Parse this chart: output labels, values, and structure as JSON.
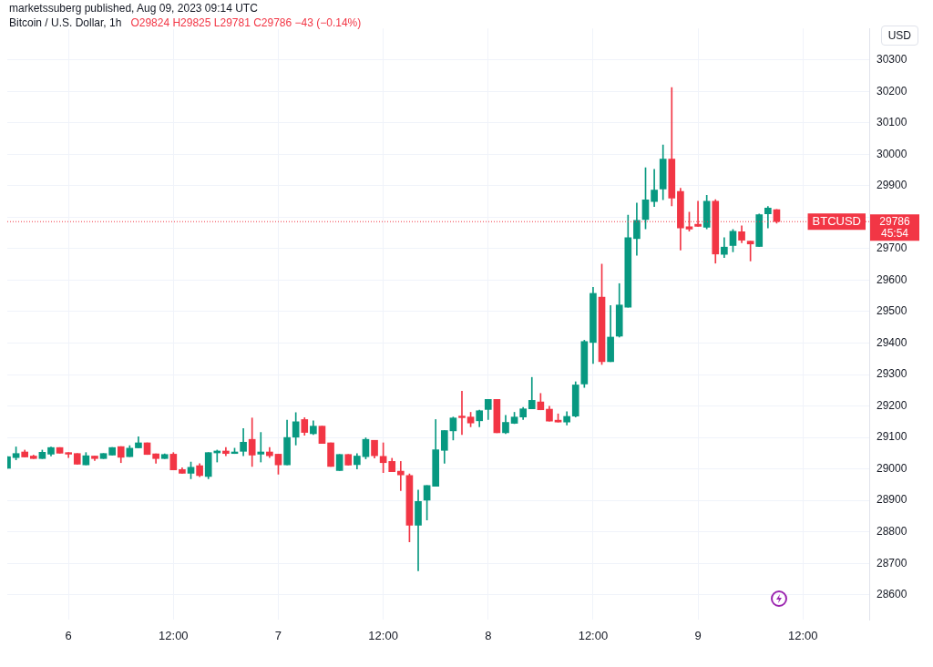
{
  "chart_data": {
    "type": "candlestick",
    "title": "Bitcoin / U.S. Dollar, 1h",
    "subtitle": "marketssuberg published, Aug 09, 2023 09:14 UTC",
    "annotations": [
      "O29824 H29825 L29781 C29786 −43 (−0.14%)",
      "USD",
      "45:54",
      "29786"
    ],
    "x": [
      "2023-08-05T17:00",
      "2023-08-05T18:00",
      "2023-08-05T19:00",
      "2023-08-05T20:00",
      "2023-08-05T21:00",
      "2023-08-05T22:00",
      "2023-08-05T23:00",
      "2023-08-06T00:00",
      "2023-08-06T01:00",
      "2023-08-06T02:00",
      "2023-08-06T03:00",
      "2023-08-06T04:00",
      "2023-08-06T05:00",
      "2023-08-06T06:00",
      "2023-08-06T07:00",
      "2023-08-06T08:00",
      "2023-08-06T09:00",
      "2023-08-06T10:00",
      "2023-08-06T11:00",
      "2023-08-06T12:00",
      "2023-08-06T13:00",
      "2023-08-06T14:00",
      "2023-08-06T15:00",
      "2023-08-06T16:00",
      "2023-08-06T17:00",
      "2023-08-06T18:00",
      "2023-08-06T19:00",
      "2023-08-06T20:00",
      "2023-08-06T21:00",
      "2023-08-06T22:00",
      "2023-08-06T23:00",
      "2023-08-07T00:00",
      "2023-08-07T01:00",
      "2023-08-07T02:00",
      "2023-08-07T03:00",
      "2023-08-07T04:00",
      "2023-08-07T05:00",
      "2023-08-07T06:00",
      "2023-08-07T07:00",
      "2023-08-07T08:00",
      "2023-08-07T09:00",
      "2023-08-07T10:00",
      "2023-08-07T11:00",
      "2023-08-07T12:00",
      "2023-08-07T13:00",
      "2023-08-07T14:00",
      "2023-08-07T15:00",
      "2023-08-07T16:00",
      "2023-08-07T17:00",
      "2023-08-07T18:00",
      "2023-08-07T19:00",
      "2023-08-07T20:00",
      "2023-08-07T21:00",
      "2023-08-07T22:00",
      "2023-08-07T23:00",
      "2023-08-08T00:00",
      "2023-08-08T01:00",
      "2023-08-08T02:00",
      "2023-08-08T03:00",
      "2023-08-08T04:00",
      "2023-08-08T05:00",
      "2023-08-08T06:00",
      "2023-08-08T07:00",
      "2023-08-08T08:00",
      "2023-08-08T09:00",
      "2023-08-08T10:00",
      "2023-08-08T11:00",
      "2023-08-08T12:00",
      "2023-08-08T13:00",
      "2023-08-08T14:00",
      "2023-08-08T15:00",
      "2023-08-08T16:00",
      "2023-08-08T17:00",
      "2023-08-08T18:00",
      "2023-08-08T19:00",
      "2023-08-08T20:00",
      "2023-08-08T21:00",
      "2023-08-08T22:00",
      "2023-08-08T23:00",
      "2023-08-09T00:00",
      "2023-08-09T01:00",
      "2023-08-09T02:00",
      "2023-08-09T03:00",
      "2023-08-09T04:00",
      "2023-08-09T05:00",
      "2023-08-09T06:00",
      "2023-08-09T07:00",
      "2023-08-09T08:00",
      "2023-08-09T09:00"
    ],
    "ohlc": [
      [
        29002,
        29039,
        29002,
        29039
      ],
      [
        29036,
        29070,
        29029,
        29049
      ],
      [
        29054,
        29060,
        29038,
        29038
      ],
      [
        29041,
        29044,
        29033,
        29033
      ],
      [
        29033,
        29060,
        29033,
        29053
      ],
      [
        29047,
        29070,
        29041,
        29068
      ],
      [
        29068,
        29068,
        29050,
        29050
      ],
      [
        29052,
        29052,
        29036,
        29047
      ],
      [
        29049,
        29049,
        29015,
        29015
      ],
      [
        29013,
        29052,
        29013,
        29042
      ],
      [
        29041,
        29041,
        29027,
        29033
      ],
      [
        29033,
        29049,
        29033,
        29049
      ],
      [
        29044,
        29068,
        29044,
        29068
      ],
      [
        29071,
        29071,
        29020,
        29037
      ],
      [
        29039,
        29074,
        29039,
        29066
      ],
      [
        29067,
        29102,
        29067,
        29083
      ],
      [
        29083,
        29083,
        29046,
        29046
      ],
      [
        29048,
        29048,
        29018,
        29033
      ],
      [
        29033,
        29048,
        29033,
        29046
      ],
      [
        29047,
        29052,
        28997,
        28997
      ],
      [
        28998,
        29004,
        28986,
        28986
      ],
      [
        28986,
        29022,
        28969,
        29005
      ],
      [
        29010,
        29017,
        28975,
        28979
      ],
      [
        28976,
        29052,
        28969,
        29052
      ],
      [
        29051,
        29060,
        29022,
        29057
      ],
      [
        29057,
        29068,
        29042,
        29049
      ],
      [
        29049,
        29066,
        29049,
        29054
      ],
      [
        29056,
        29128,
        29042,
        29085
      ],
      [
        29094,
        29162,
        29008,
        29044
      ],
      [
        29047,
        29116,
        29022,
        29054
      ],
      [
        29054,
        29068,
        29036,
        29042
      ],
      [
        29047,
        29047,
        28983,
        29013
      ],
      [
        29013,
        29155,
        29013,
        29100
      ],
      [
        29101,
        29179,
        29076,
        29150
      ],
      [
        29157,
        29163,
        29107,
        29116
      ],
      [
        29112,
        29153,
        29109,
        29136
      ],
      [
        29136,
        29136,
        29081,
        29081
      ],
      [
        29083,
        29083,
        29008,
        29008
      ],
      [
        28995,
        29046,
        28995,
        29046
      ],
      [
        29046,
        29046,
        29012,
        29012
      ],
      [
        29014,
        29049,
        29000,
        29041
      ],
      [
        29039,
        29099,
        29032,
        29094
      ],
      [
        29091,
        29091,
        29035,
        29042
      ],
      [
        29040,
        29083,
        28988,
        29020
      ],
      [
        29024,
        29034,
        28991,
        28991
      ],
      [
        28993,
        29024,
        28931,
        28981
      ],
      [
        28979,
        28984,
        28768,
        28821
      ],
      [
        28821,
        28933,
        28676,
        28897
      ],
      [
        28901,
        28947,
        28838,
        28947
      ],
      [
        28945,
        29157,
        28945,
        29061
      ],
      [
        29059,
        29122,
        29018,
        29122
      ],
      [
        29121,
        29165,
        29092,
        29162
      ],
      [
        29168,
        29247,
        29109,
        29163
      ],
      [
        29165,
        29180,
        29134,
        29146
      ],
      [
        29153,
        29187,
        29134,
        29185
      ],
      [
        29189,
        29221,
        29157,
        29221
      ],
      [
        29221,
        29221,
        29115,
        29115
      ],
      [
        29115,
        29170,
        29112,
        29148
      ],
      [
        29145,
        29180,
        29144,
        29165
      ],
      [
        29165,
        29196,
        29157,
        29191
      ],
      [
        29191,
        29291,
        29191,
        29218
      ],
      [
        29213,
        29240,
        29188,
        29188
      ],
      [
        29190,
        29199,
        29152,
        29152
      ],
      [
        29155,
        29175,
        29149,
        29149
      ],
      [
        29149,
        29182,
        29140,
        29167
      ],
      [
        29168,
        29277,
        29165,
        29267
      ],
      [
        29270,
        29409,
        29259,
        29405
      ],
      [
        29402,
        29577,
        29335,
        29558
      ],
      [
        29546,
        29651,
        29332,
        29341
      ],
      [
        29341,
        29519,
        29341,
        29419
      ],
      [
        29422,
        29589,
        29419,
        29521
      ],
      [
        29514,
        29807,
        29514,
        29735
      ],
      [
        29732,
        29845,
        29679,
        29790
      ],
      [
        29793,
        29957,
        29763,
        29855
      ],
      [
        29850,
        29952,
        29834,
        29886
      ],
      [
        29890,
        30030,
        29856,
        29985
      ],
      [
        29985,
        30212,
        29836,
        29861
      ],
      [
        29882,
        29892,
        29696,
        29766
      ],
      [
        29770,
        29816,
        29756,
        29762
      ],
      [
        29778,
        29851,
        29771,
        29771
      ],
      [
        29768,
        29870,
        29763,
        29851
      ],
      [
        29851,
        29856,
        29654,
        29683
      ],
      [
        29682,
        29735,
        29672,
        29705
      ],
      [
        29710,
        29761,
        29690,
        29755
      ],
      [
        29754,
        29773,
        29719,
        29727
      ],
      [
        29724,
        29724,
        29661,
        29715
      ],
      [
        29707,
        29810,
        29707,
        29808
      ],
      [
        29811,
        29834,
        29766,
        29829
      ],
      [
        29824,
        29825,
        29781,
        29786
      ]
    ],
    "colors": [
      "#089981",
      "#089981",
      "#f23645",
      "#f23645",
      "#089981",
      "#089981",
      "#f23645",
      "#f23645",
      "#f23645",
      "#089981",
      "#f23645",
      "#089981",
      "#089981",
      "#f23645",
      "#089981",
      "#089981",
      "#f23645",
      "#f23645",
      "#089981",
      "#f23645",
      "#f23645",
      "#089981",
      "#f23645",
      "#089981",
      "#089981",
      "#f23645",
      "#089981",
      "#089981",
      "#f23645",
      "#089981",
      "#f23645",
      "#f23645",
      "#089981",
      "#089981",
      "#f23645",
      "#089981",
      "#f23645",
      "#f23645",
      "#089981",
      "#f23645",
      "#089981",
      "#089981",
      "#f23645",
      "#f23645",
      "#f23645",
      "#f23645",
      "#f23645",
      "#089981",
      "#089981",
      "#089981",
      "#089981",
      "#089981",
      "#f23645",
      "#f23645",
      "#089981",
      "#089981",
      "#f23645",
      "#089981",
      "#089981",
      "#089981",
      "#089981",
      "#f23645",
      "#f23645",
      "#f23645",
      "#089981",
      "#089981",
      "#089981",
      "#089981",
      "#f23645",
      "#089981",
      "#089981",
      "#089981",
      "#089981",
      "#089981",
      "#089981",
      "#089981",
      "#f23645",
      "#f23645",
      "#f23645",
      "#f23645",
      "#089981",
      "#f23645",
      "#089981",
      "#089981",
      "#f23645",
      "#f23645",
      "#089981",
      "#089981",
      "#f23645"
    ],
    "xlim": [
      "2023-08-05T17:00",
      "2023-08-09T19:35"
    ],
    "xticks": [
      {
        "value": "2023-08-06T00:00",
        "label": "6"
      },
      {
        "value": "2023-08-06T12:00",
        "label": "12:00"
      },
      {
        "value": "2023-08-07T00:00",
        "label": "7"
      },
      {
        "value": "2023-08-07T12:00",
        "label": "12:00"
      },
      {
        "value": "2023-08-08T00:00",
        "label": "8"
      },
      {
        "value": "2023-08-08T12:00",
        "label": "12:00"
      },
      {
        "value": "2023-08-09T00:00",
        "label": "9"
      },
      {
        "value": "2023-08-09T12:00",
        "label": "12:00"
      }
    ],
    "ylim": [
      28520,
      30400
    ],
    "yticks": [
      28600,
      28700,
      28800,
      28900,
      29000,
      29100,
      29200,
      29300,
      29400,
      29500,
      29600,
      29700,
      {
        "value": 29800,
        "label": null
      },
      29900,
      30000,
      30100,
      30200,
      30300
    ],
    "ref_lines": [
      {
        "axis": "y",
        "value": 29786,
        "label": "BTCUSD",
        "color": "#f23645",
        "line_style": "dotted"
      }
    ],
    "grid": true,
    "legend": false
  }
}
